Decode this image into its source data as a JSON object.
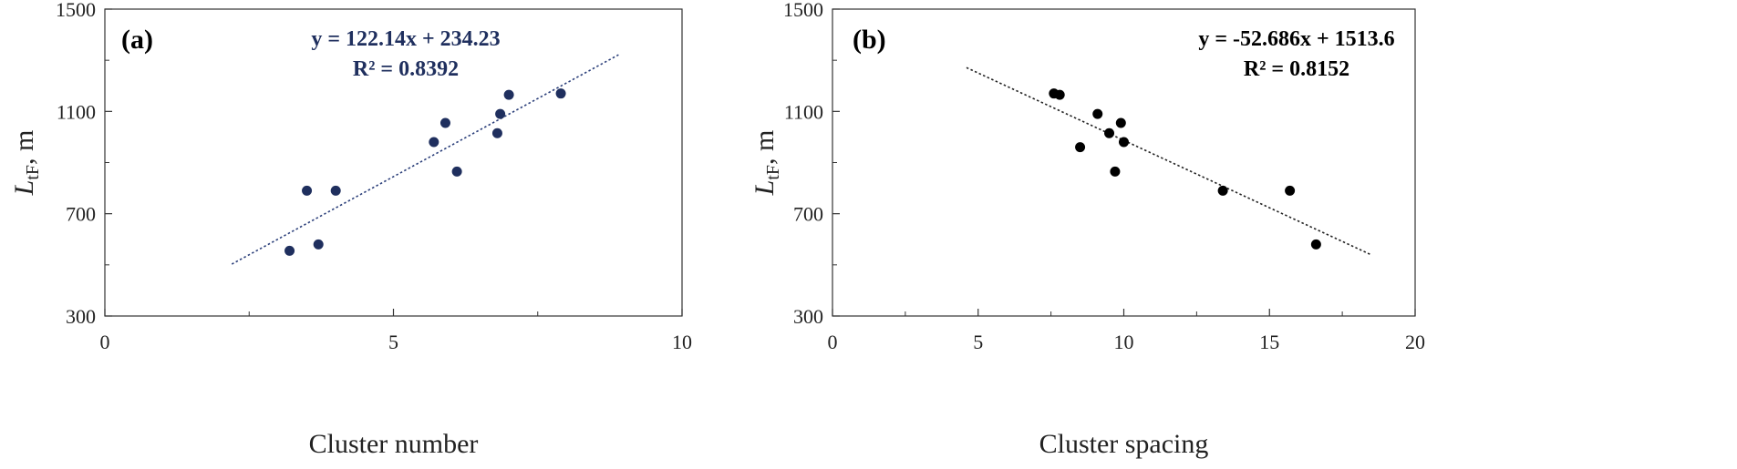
{
  "chart_data": [
    {
      "type": "scatter",
      "panel_label": "(a)",
      "xlabel": "Cluster number",
      "ylabel_main": "L",
      "ylabel_sub": "tF",
      "ylabel_unit": ", m",
      "xlim": [
        0,
        10
      ],
      "ylim": [
        300,
        1500
      ],
      "x_ticks": [
        0,
        5,
        10
      ],
      "y_ticks": [
        300,
        700,
        1100,
        1500
      ],
      "grid": false,
      "marker_color": "#1f2f5e",
      "trendline_color": "#2b3f7a",
      "equation": "y = 122.14x + 234.23",
      "r_squared": "R² = 0.8392",
      "equation_color": "#1f2f5e",
      "trendline": {
        "slope": 122.14,
        "intercept": 234.23,
        "x_range": [
          2.2,
          8.9
        ]
      },
      "points": [
        {
          "x": 3.2,
          "y": 555
        },
        {
          "x": 3.5,
          "y": 790
        },
        {
          "x": 3.7,
          "y": 580
        },
        {
          "x": 4.0,
          "y": 790
        },
        {
          "x": 5.7,
          "y": 980
        },
        {
          "x": 5.9,
          "y": 1055
        },
        {
          "x": 6.1,
          "y": 865
        },
        {
          "x": 6.8,
          "y": 1015
        },
        {
          "x": 6.85,
          "y": 1090
        },
        {
          "x": 7.0,
          "y": 1165
        },
        {
          "x": 7.9,
          "y": 1170
        }
      ]
    },
    {
      "type": "scatter",
      "panel_label": "(b)",
      "xlabel": "Cluster spacing",
      "ylabel_main": "L",
      "ylabel_sub": "tF",
      "ylabel_unit": ", m",
      "xlim": [
        0,
        20
      ],
      "ylim": [
        300,
        1500
      ],
      "x_ticks": [
        0,
        5,
        10,
        15,
        20
      ],
      "y_ticks": [
        300,
        700,
        1100,
        1500
      ],
      "grid": false,
      "marker_color": "#000000",
      "trendline_color": "#222222",
      "equation": "y = -52.686x + 1513.6",
      "r_squared": "R² = 0.8152",
      "equation_color": "#000000",
      "trendline": {
        "slope": -52.686,
        "intercept": 1513.6,
        "x_range": [
          4.6,
          18.5
        ]
      },
      "points": [
        {
          "x": 7.6,
          "y": 1170
        },
        {
          "x": 7.8,
          "y": 1165
        },
        {
          "x": 8.5,
          "y": 960
        },
        {
          "x": 9.1,
          "y": 1090
        },
        {
          "x": 9.5,
          "y": 1015
        },
        {
          "x": 9.7,
          "y": 865
        },
        {
          "x": 9.9,
          "y": 1055
        },
        {
          "x": 10.0,
          "y": 980
        },
        {
          "x": 13.4,
          "y": 790
        },
        {
          "x": 15.7,
          "y": 790
        },
        {
          "x": 16.6,
          "y": 580
        }
      ]
    }
  ]
}
